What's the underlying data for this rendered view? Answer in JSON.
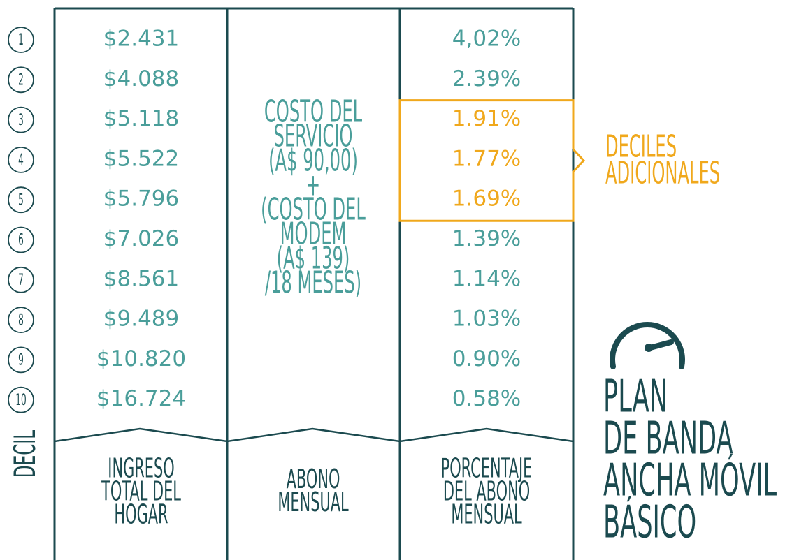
{
  "axis_label": "DECIL",
  "deciles": [
    "1",
    "2",
    "3",
    "4",
    "5",
    "6",
    "7",
    "8",
    "9",
    "10"
  ],
  "table": {
    "income": [
      "$2.431",
      "$4.088",
      "$5.118",
      "$5.522",
      "$5.796",
      "$7.026",
      "$8.561",
      "$9.489",
      "$10.820",
      "$16.724"
    ],
    "fee": [
      "COSTO DEL",
      "SERVICIO",
      "(A$ 90,00)",
      "+",
      "(COSTO DEL",
      "MODEM",
      "(A$ 139)",
      "/18 MESES)"
    ],
    "percent": [
      "4,02%",
      "2.39%",
      "1.91%",
      "1.77%",
      "1.69%",
      "1.39%",
      "1.14%",
      "1.03%",
      "0.90%",
      "0.58%"
    ],
    "headers": [
      [
        "INGRESO",
        "TOTAL DEL",
        "HOGAR"
      ],
      [
        "ABONO",
        "MENSUAL"
      ],
      [
        "PORCENTAJE",
        "DEL ABONO",
        "MENSUAL"
      ]
    ]
  },
  "highlight": {
    "rows": [
      2,
      3,
      4
    ],
    "label": [
      "DECILES",
      "ADICIONALES"
    ]
  },
  "title": [
    "PLAN",
    "DE BANDA",
    "ANCHA MÓVIL",
    "BÁSICO"
  ]
}
